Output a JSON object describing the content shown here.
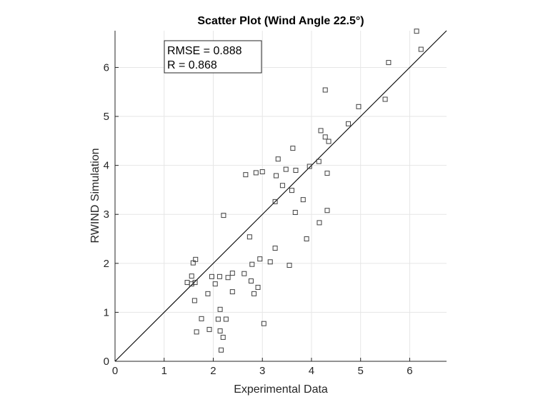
{
  "chart_data": {
    "type": "scatter",
    "title": "Scatter Plot  (Wind Angle 22.5°)",
    "xlabel": "Experimental Data",
    "ylabel": "RWIND Simulation",
    "xlim": [
      0,
      6.75
    ],
    "ylim": [
      0,
      6.75
    ],
    "xticks": [
      "0",
      "1",
      "2",
      "3",
      "4",
      "5",
      "6"
    ],
    "yticks": [
      "0",
      "1",
      "2",
      "3",
      "4",
      "5",
      "6"
    ],
    "grid": true,
    "legend_placement": "top-left",
    "annotations": [
      "RMSE = 0.888",
      "R = 0.868"
    ],
    "reference_line": {
      "type": "y=x"
    },
    "marker": "open-square",
    "colors": {
      "marker": "#404040",
      "line": "#000000",
      "grid": "#e6e6e6"
    },
    "points": [
      [
        6.14,
        6.74
      ],
      [
        6.23,
        6.37
      ],
      [
        5.57,
        6.1
      ],
      [
        4.28,
        5.54
      ],
      [
        5.5,
        5.35
      ],
      [
        4.96,
        5.2
      ],
      [
        4.75,
        4.85
      ],
      [
        4.19,
        4.71
      ],
      [
        4.28,
        4.58
      ],
      [
        4.35,
        4.49
      ],
      [
        3.62,
        4.35
      ],
      [
        3.32,
        4.13
      ],
      [
        4.15,
        4.08
      ],
      [
        3.96,
        3.98
      ],
      [
        3.48,
        3.92
      ],
      [
        3.68,
        3.9
      ],
      [
        3.0,
        3.87
      ],
      [
        2.87,
        3.85
      ],
      [
        2.66,
        3.81
      ],
      [
        3.28,
        3.79
      ],
      [
        4.32,
        3.84
      ],
      [
        3.41,
        3.59
      ],
      [
        3.6,
        3.49
      ],
      [
        3.83,
        3.3
      ],
      [
        3.26,
        3.26
      ],
      [
        4.32,
        3.08
      ],
      [
        3.67,
        3.04
      ],
      [
        2.21,
        2.98
      ],
      [
        4.16,
        2.83
      ],
      [
        2.74,
        2.54
      ],
      [
        3.9,
        2.5
      ],
      [
        3.26,
        2.31
      ],
      [
        1.64,
        2.08
      ],
      [
        1.59,
        2.01
      ],
      [
        2.95,
        2.09
      ],
      [
        2.79,
        1.98
      ],
      [
        3.16,
        2.03
      ],
      [
        3.55,
        1.96
      ],
      [
        1.56,
        1.74
      ],
      [
        1.97,
        1.73
      ],
      [
        2.13,
        1.73
      ],
      [
        2.39,
        1.8
      ],
      [
        2.63,
        1.79
      ],
      [
        2.3,
        1.71
      ],
      [
        2.77,
        1.64
      ],
      [
        1.47,
        1.61
      ],
      [
        1.56,
        1.58
      ],
      [
        1.63,
        1.61
      ],
      [
        2.04,
        1.58
      ],
      [
        2.91,
        1.51
      ],
      [
        1.89,
        1.38
      ],
      [
        2.39,
        1.42
      ],
      [
        2.83,
        1.38
      ],
      [
        1.62,
        1.24
      ],
      [
        2.14,
        1.06
      ],
      [
        1.76,
        0.87
      ],
      [
        2.1,
        0.86
      ],
      [
        2.26,
        0.86
      ],
      [
        3.03,
        0.77
      ],
      [
        1.92,
        0.65
      ],
      [
        2.14,
        0.62
      ],
      [
        1.66,
        0.6
      ],
      [
        2.2,
        0.49
      ],
      [
        2.16,
        0.23
      ]
    ]
  }
}
